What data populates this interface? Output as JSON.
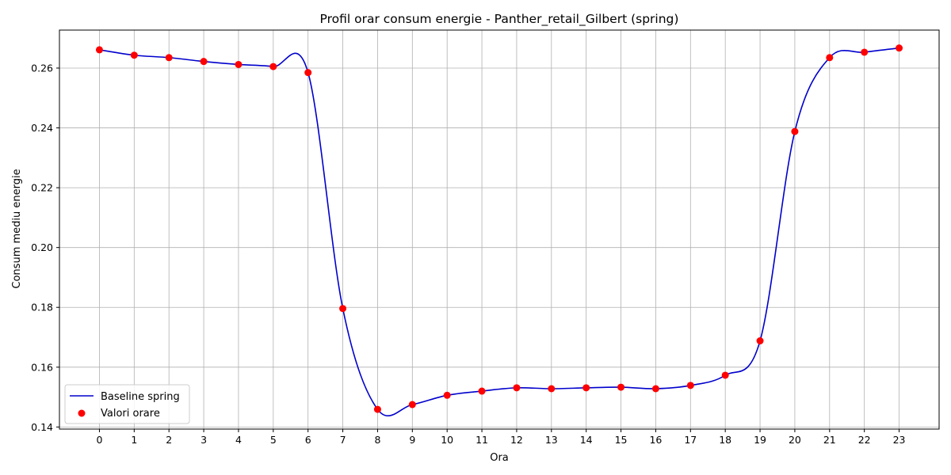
{
  "chart_data": {
    "type": "line",
    "title": "Profil orar consum energie - Panther_retail_Gilbert (spring)",
    "xlabel": "Ora",
    "ylabel": "Consum mediu energie",
    "x": [
      0,
      1,
      2,
      3,
      4,
      5,
      6,
      7,
      8,
      9,
      10,
      11,
      12,
      13,
      14,
      15,
      16,
      17,
      18,
      19,
      20,
      21,
      22,
      23
    ],
    "xlim": [
      -1.15,
      24.15
    ],
    "ylim": [
      0.1393,
      0.2727
    ],
    "yticks": [
      0.14,
      0.16,
      0.18,
      0.2,
      0.22,
      0.24,
      0.26
    ],
    "ytick_labels": [
      "0.14",
      "0.16",
      "0.18",
      "0.20",
      "0.22",
      "0.24",
      "0.26"
    ],
    "grid": true,
    "legend_position": "bottom-left",
    "series": [
      {
        "name": "Baseline spring",
        "kind": "line",
        "color": "#0000cc",
        "values": [
          0.2661,
          0.2643,
          0.2635,
          0.2622,
          0.2612,
          0.2605,
          0.2585,
          0.1796,
          0.1459,
          0.1475,
          0.1506,
          0.152,
          0.1531,
          0.1528,
          0.1531,
          0.1533,
          0.1528,
          0.1539,
          0.1573,
          0.1688,
          0.2388,
          0.2635,
          0.2653,
          0.2667
        ]
      },
      {
        "name": "Valori orare",
        "kind": "scatter",
        "color": "#ff0000",
        "values": [
          0.2661,
          0.2643,
          0.2635,
          0.2622,
          0.2612,
          0.2605,
          0.2585,
          0.1796,
          0.1459,
          0.1475,
          0.1506,
          0.152,
          0.1531,
          0.1528,
          0.1531,
          0.1533,
          0.1528,
          0.1539,
          0.1573,
          0.1688,
          0.2388,
          0.2635,
          0.2653,
          0.2667
        ]
      }
    ]
  }
}
